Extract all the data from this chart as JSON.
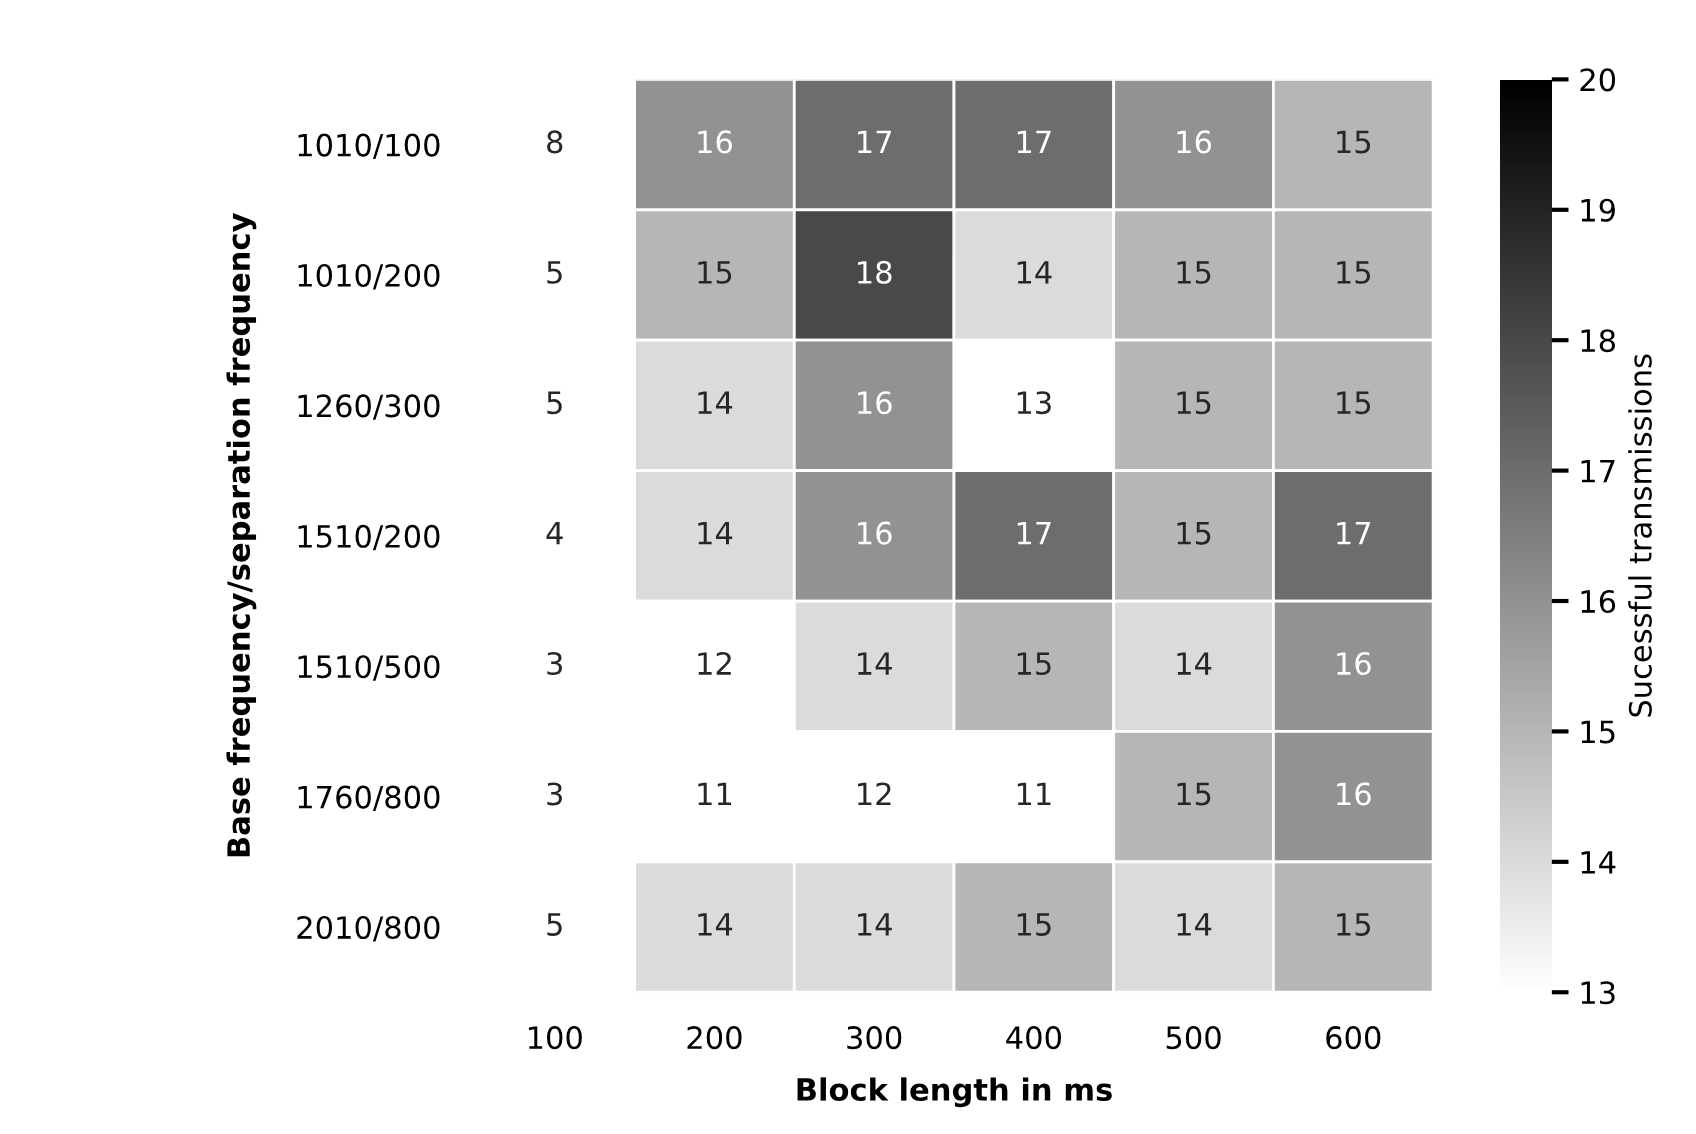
{
  "chart_data": {
    "type": "heatmap",
    "xlabel": "Block length in ms",
    "ylabel": "Base frequency/separation frequency",
    "clabel": "Sucessful transmissions",
    "categories": [
      "100",
      "200",
      "300",
      "400",
      "500",
      "600"
    ],
    "y_categories": [
      "1010/100",
      "1010/200",
      "1260/300",
      "1510/200",
      "1510/500",
      "1760/800",
      "2010/800"
    ],
    "cells": [
      [
        8,
        16,
        17,
        17,
        16,
        15
      ],
      [
        5,
        15,
        18,
        14,
        15,
        15
      ],
      [
        5,
        14,
        16,
        13,
        15,
        15
      ],
      [
        4,
        14,
        16,
        17,
        15,
        17
      ],
      [
        3,
        12,
        14,
        15,
        14,
        16
      ],
      [
        3,
        11,
        12,
        11,
        15,
        16
      ],
      [
        5,
        14,
        14,
        15,
        14,
        15
      ]
    ],
    "data_labels": true,
    "clim": [
      13,
      20
    ],
    "cticks": [
      13,
      14,
      15,
      16,
      17,
      18,
      19,
      20
    ]
  }
}
